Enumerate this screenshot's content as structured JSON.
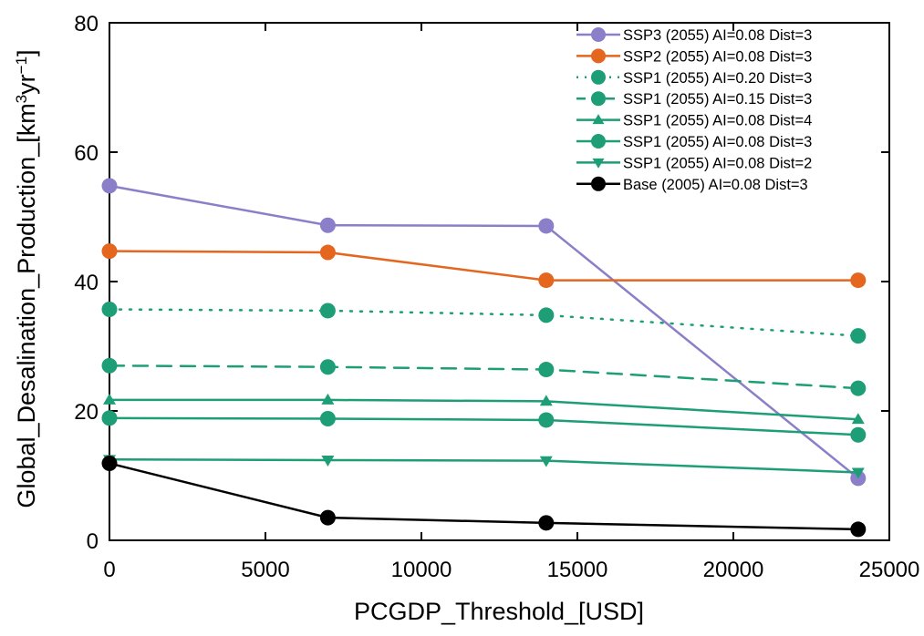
{
  "chart_data": {
    "type": "line",
    "title": "",
    "xlabel": "PCGDP_Threshold_[USD]",
    "ylabel_prefix": "Global_Desalination_Production_[km",
    "ylabel_sup1": "3",
    "ylabel_mid": "yr",
    "ylabel_sup2": "−1",
    "ylabel_suffix": "]",
    "xlim": [
      0,
      25000
    ],
    "ylim": [
      0,
      80
    ],
    "xticks": [
      0,
      5000,
      10000,
      15000,
      20000,
      25000
    ],
    "xtick_labels": [
      "0",
      "5000",
      "10000",
      "15000",
      "20000",
      "25000"
    ],
    "yticks": [
      0,
      20,
      40,
      60,
      80
    ],
    "ytick_labels": [
      "0",
      "20",
      "40",
      "60",
      "80"
    ],
    "legend_position": "top-right",
    "grid": false,
    "x": [
      0,
      7000,
      14000,
      24000
    ],
    "series": [
      {
        "name": "SSP3 (2055) AI=0.08 Dist=3",
        "color": "#8a7fc8",
        "dash": "solid",
        "marker": "circle",
        "values": [
          54.8,
          48.7,
          48.6,
          9.6
        ]
      },
      {
        "name": "SSP2 (2055) AI=0.08 Dist=3",
        "color": "#e4661f",
        "dash": "solid",
        "marker": "circle",
        "values": [
          44.7,
          44.5,
          40.2,
          40.2
        ]
      },
      {
        "name": "SSP1 (2055) AI=0.20 Dist=3",
        "color": "#1d9e77",
        "dash": "dotted",
        "marker": "circle",
        "values": [
          35.7,
          35.5,
          34.8,
          31.6
        ]
      },
      {
        "name": "SSP1 (2055) AI=0.15 Dist=3",
        "color": "#1d9e77",
        "dash": "dashed",
        "marker": "circle",
        "values": [
          27.0,
          26.8,
          26.4,
          23.5
        ]
      },
      {
        "name": "SSP1 (2055) AI=0.08 Dist=4",
        "color": "#1d9e77",
        "dash": "solid",
        "marker": "triangle-up",
        "values": [
          21.7,
          21.7,
          21.5,
          18.7
        ]
      },
      {
        "name": "SSP1 (2055) AI=0.08 Dist=3",
        "color": "#1d9e77",
        "dash": "solid",
        "marker": "circle",
        "values": [
          18.9,
          18.8,
          18.6,
          16.3
        ]
      },
      {
        "name": "SSP1 (2055) AI=0.08 Dist=2",
        "color": "#1d9e77",
        "dash": "solid",
        "marker": "triangle-down",
        "values": [
          12.5,
          12.4,
          12.3,
          10.5
        ]
      },
      {
        "name": "Base (2005) AI=0.08 Dist=3",
        "color": "#000000",
        "dash": "solid",
        "marker": "circle",
        "values": [
          11.9,
          3.5,
          2.7,
          1.7
        ]
      }
    ]
  }
}
